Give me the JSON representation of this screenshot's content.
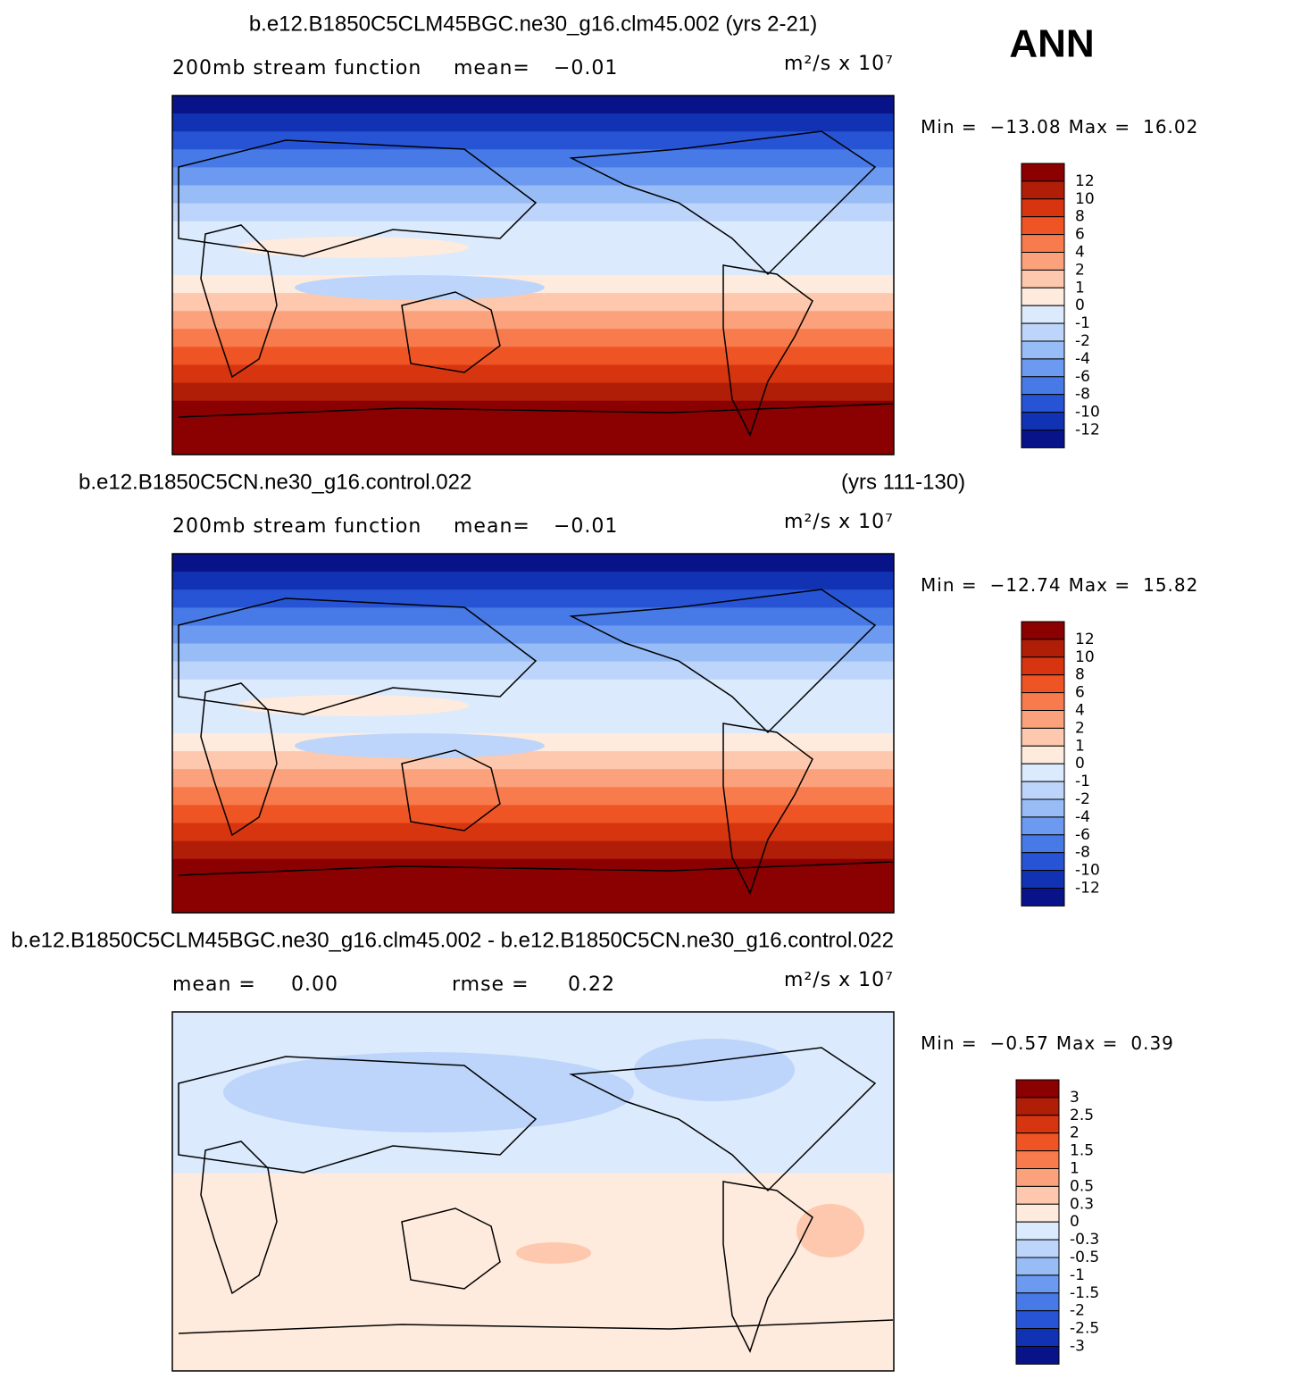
{
  "header": {
    "title": "ANN"
  },
  "panels": [
    {
      "title": "b.e12.B1850C5CLM45BGC.ne30_g16.clm45.002 (yrs 2-21)",
      "field": "200mb stream function",
      "mean_label": "mean=",
      "mean": "−0.01",
      "units": "m²/s x 10⁷",
      "min_label": "Min =",
      "min": "−13.08",
      "max_label": "Max =",
      "max": "16.02",
      "levels": [
        12,
        10,
        8,
        6,
        4,
        2,
        1,
        0,
        -1,
        -2,
        -4,
        -6,
        -8,
        -10,
        -12
      ],
      "colors": [
        "#8b0000",
        "#b01e08",
        "#d63510",
        "#ee5424",
        "#f77b4c",
        "#fba27c",
        "#fdc8ad",
        "#feebdd",
        "#dbeafc",
        "#bdd5fa",
        "#98bcf6",
        "#6c9af0",
        "#477ae6",
        "#2754d4",
        "#1232b4",
        "#08138a"
      ]
    },
    {
      "title": "b.e12.B1850C5CN.ne30_g16.control.022",
      "years": "(yrs 111-130)",
      "field": "200mb stream function",
      "mean_label": "mean=",
      "mean": "−0.01",
      "units": "m²/s x 10⁷",
      "min_label": "Min =",
      "min": "−12.74",
      "max_label": "Max =",
      "max": "15.82",
      "levels": [
        12,
        10,
        8,
        6,
        4,
        2,
        1,
        0,
        -1,
        -2,
        -4,
        -6,
        -8,
        -10,
        -12
      ],
      "colors": [
        "#8b0000",
        "#b01e08",
        "#d63510",
        "#ee5424",
        "#f77b4c",
        "#fba27c",
        "#fdc8ad",
        "#feebdd",
        "#dbeafc",
        "#bdd5fa",
        "#98bcf6",
        "#6c9af0",
        "#477ae6",
        "#2754d4",
        "#1232b4",
        "#08138a"
      ]
    },
    {
      "title": "b.e12.B1850C5CLM45BGC.ne30_g16.clm45.002 - b.e12.B1850C5CN.ne30_g16.control.022",
      "mean_label": "mean =",
      "mean": "0.00",
      "rmse_label": "rmse =",
      "rmse": "0.22",
      "units": "m²/s x 10⁷",
      "min_label": "Min =",
      "min": "−0.57",
      "max_label": "Max =",
      "max": "0.39",
      "levels": [
        3,
        2.5,
        2,
        1.5,
        1,
        0.5,
        0.3,
        0,
        -0.3,
        -0.5,
        -1,
        -1.5,
        -2,
        -2.5,
        -3
      ],
      "colors": [
        "#8b0000",
        "#b01e08",
        "#d63510",
        "#ee5424",
        "#f77b4c",
        "#fba27c",
        "#fdc8ad",
        "#feebdd",
        "#dbeafc",
        "#bdd5fa",
        "#98bcf6",
        "#6c9af0",
        "#477ae6",
        "#2754d4",
        "#1232b4",
        "#08138a"
      ]
    }
  ]
}
